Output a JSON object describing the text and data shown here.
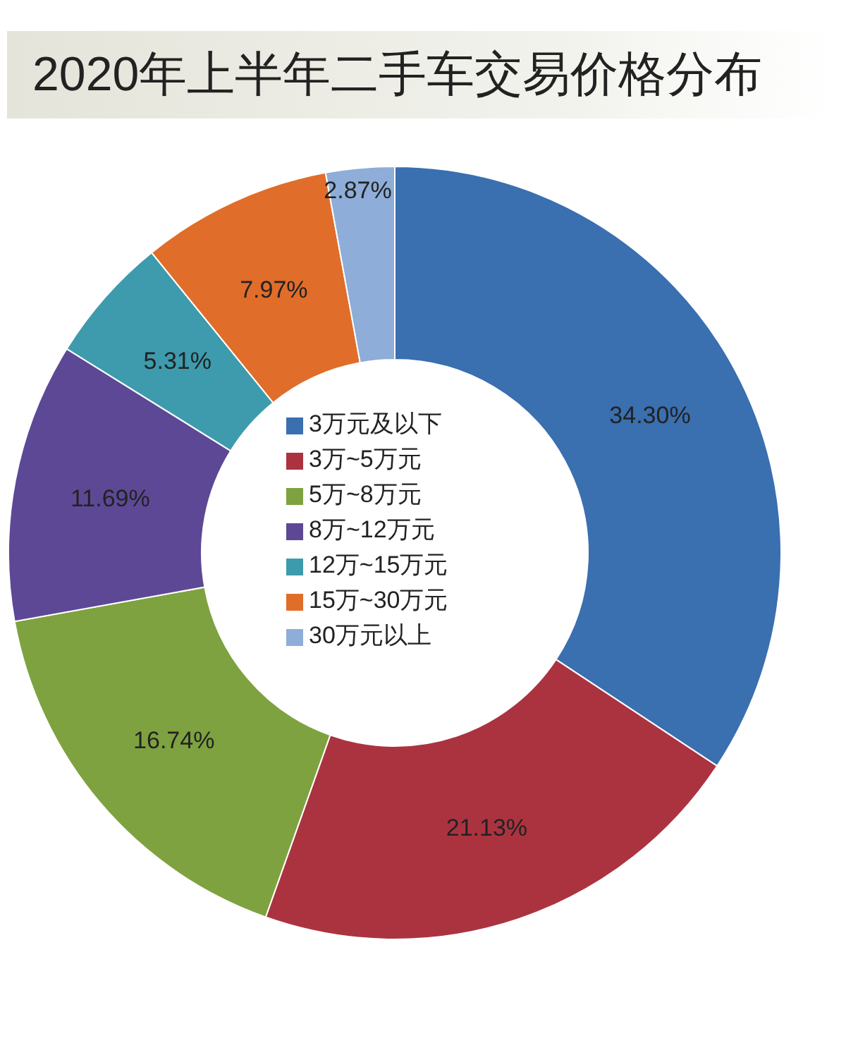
{
  "chart_data": {
    "type": "donut",
    "title": "2020年上半年二手车交易价格分布",
    "categories": [
      "3万元及以下",
      "3万~5万元",
      "5万~8万元",
      "8万~12万元",
      "12万~15万元",
      "15万~30万元",
      "30万元以上"
    ],
    "values": [
      34.3,
      21.13,
      16.74,
      11.69,
      5.31,
      7.97,
      2.87
    ],
    "value_labels": [
      "34.30%",
      "21.13%",
      "16.74%",
      "11.69%",
      "5.31%",
      "7.97%",
      "2.87%"
    ],
    "colors": [
      "#3a6fb0",
      "#ab3340",
      "#7ea23f",
      "#5d4896",
      "#3d9bad",
      "#e06d2a",
      "#8eadd8"
    ],
    "legend": "center"
  }
}
